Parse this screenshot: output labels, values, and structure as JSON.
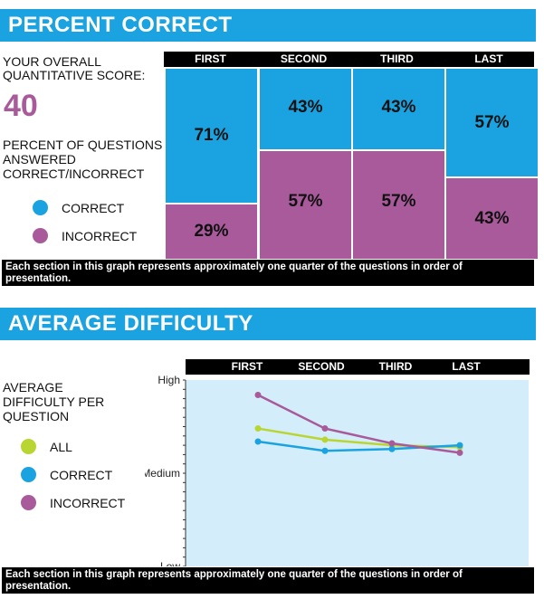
{
  "section1": {
    "title": "PERCENT CORRECT",
    "score_label_line1": "YOUR OVERALL",
    "score_label_line2": "QUANTITATIVE SCORE:",
    "score": "40",
    "pct_label_line1": "PERCENT OF QUESTIONS",
    "pct_label_line2": "ANSWERED",
    "pct_label_line3": "CORRECT/INCORRECT",
    "legend": [
      {
        "label": "CORRECT",
        "color": "#1aa3e0"
      },
      {
        "label": "INCORRECT",
        "color": "#a85a9a"
      }
    ],
    "footnote": "Each section in this graph represents approximately one quarter of the questions in order of presentation."
  },
  "section2": {
    "title": "AVERAGE DIFFICULTY",
    "label_line1": "AVERAGE",
    "label_line2": "DIFFICULTY PER",
    "label_line3": "QUESTION",
    "legend": [
      {
        "label": "ALL",
        "color": "#b9d531"
      },
      {
        "label": "CORRECT",
        "color": "#1aa3e0"
      },
      {
        "label": "INCORRECT",
        "color": "#a85a9a"
      }
    ],
    "footnote": "Each section in this graph represents approximately one quarter of the questions in order of presentation."
  },
  "chart_data": [
    {
      "type": "bar",
      "stacked": true,
      "title": "PERCENT CORRECT",
      "categories": [
        "FIRST",
        "SECOND",
        "THIRD",
        "LAST"
      ],
      "series": [
        {
          "name": "CORRECT",
          "color": "#1aa3e0",
          "values": [
            71,
            43,
            43,
            57
          ],
          "labels": [
            "71%",
            "43%",
            "43%",
            "57%"
          ]
        },
        {
          "name": "INCORRECT",
          "color": "#a85a9a",
          "values": [
            29,
            57,
            57,
            43
          ],
          "labels": [
            "29%",
            "57%",
            "57%",
            "43%"
          ]
        }
      ],
      "ylim": [
        0,
        100
      ]
    },
    {
      "type": "line",
      "title": "AVERAGE DIFFICULTY",
      "categories": [
        "FIRST",
        "SECOND",
        "THIRD",
        "LAST"
      ],
      "y_tick_labels": [
        "High",
        "Medium",
        "Low"
      ],
      "ylim": [
        0,
        100
      ],
      "series": [
        {
          "name": "ALL",
          "color": "#b9d531",
          "values": [
            74,
            68,
            65,
            64
          ]
        },
        {
          "name": "CORRECT",
          "color": "#1aa3e0",
          "values": [
            67,
            62,
            63,
            65
          ]
        },
        {
          "name": "INCORRECT",
          "color": "#a85a9a",
          "values": [
            92,
            74,
            66,
            61
          ]
        }
      ]
    }
  ]
}
